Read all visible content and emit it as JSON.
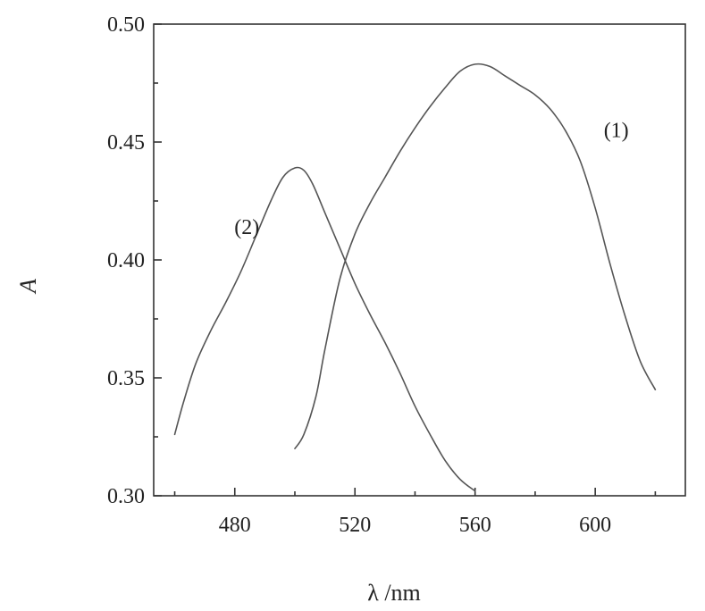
{
  "chart_data": {
    "type": "line",
    "title": "",
    "xlabel": "λ /nm",
    "ylabel": "A",
    "xlim": [
      453,
      630
    ],
    "ylim": [
      0.3,
      0.5
    ],
    "x_ticks": [
      480,
      520,
      560,
      600
    ],
    "x_tick_labels": [
      "480",
      "520",
      "560",
      "600"
    ],
    "y_ticks": [
      0.3,
      0.35,
      0.4,
      0.45,
      0.5
    ],
    "y_tick_labels": [
      "0.30",
      "0.35",
      "0.40",
      "0.45",
      "0.50"
    ],
    "grid": false,
    "legend": "none",
    "series": [
      {
        "name": "(1)",
        "x": [
          500,
          503,
          507,
          510,
          515,
          520,
          525,
          530,
          535,
          540,
          545,
          550,
          555,
          560,
          565,
          570,
          575,
          580,
          585,
          590,
          595,
          600,
          605,
          610,
          615,
          620
        ],
        "y": [
          0.32,
          0.326,
          0.342,
          0.362,
          0.392,
          0.411,
          0.424,
          0.435,
          0.446,
          0.456,
          0.465,
          0.473,
          0.48,
          0.483,
          0.482,
          0.478,
          0.474,
          0.47,
          0.464,
          0.455,
          0.442,
          0.422,
          0.398,
          0.376,
          0.357,
          0.345
        ]
      },
      {
        "name": "(2)",
        "x": [
          460,
          463,
          467,
          472,
          477,
          482,
          487,
          492,
          496,
          500,
          503,
          506,
          510,
          515,
          520,
          525,
          530,
          535,
          540,
          545,
          550,
          555,
          560
        ],
        "y": [
          0.326,
          0.34,
          0.356,
          0.37,
          0.382,
          0.395,
          0.41,
          0.425,
          0.435,
          0.439,
          0.438,
          0.432,
          0.42,
          0.405,
          0.39,
          0.377,
          0.365,
          0.352,
          0.338,
          0.326,
          0.315,
          0.307,
          0.302
        ]
      }
    ],
    "series_label_positions": [
      {
        "series": 0,
        "x": 607,
        "y": 0.452
      },
      {
        "series": 1,
        "x": 484,
        "y": 0.411
      }
    ]
  }
}
